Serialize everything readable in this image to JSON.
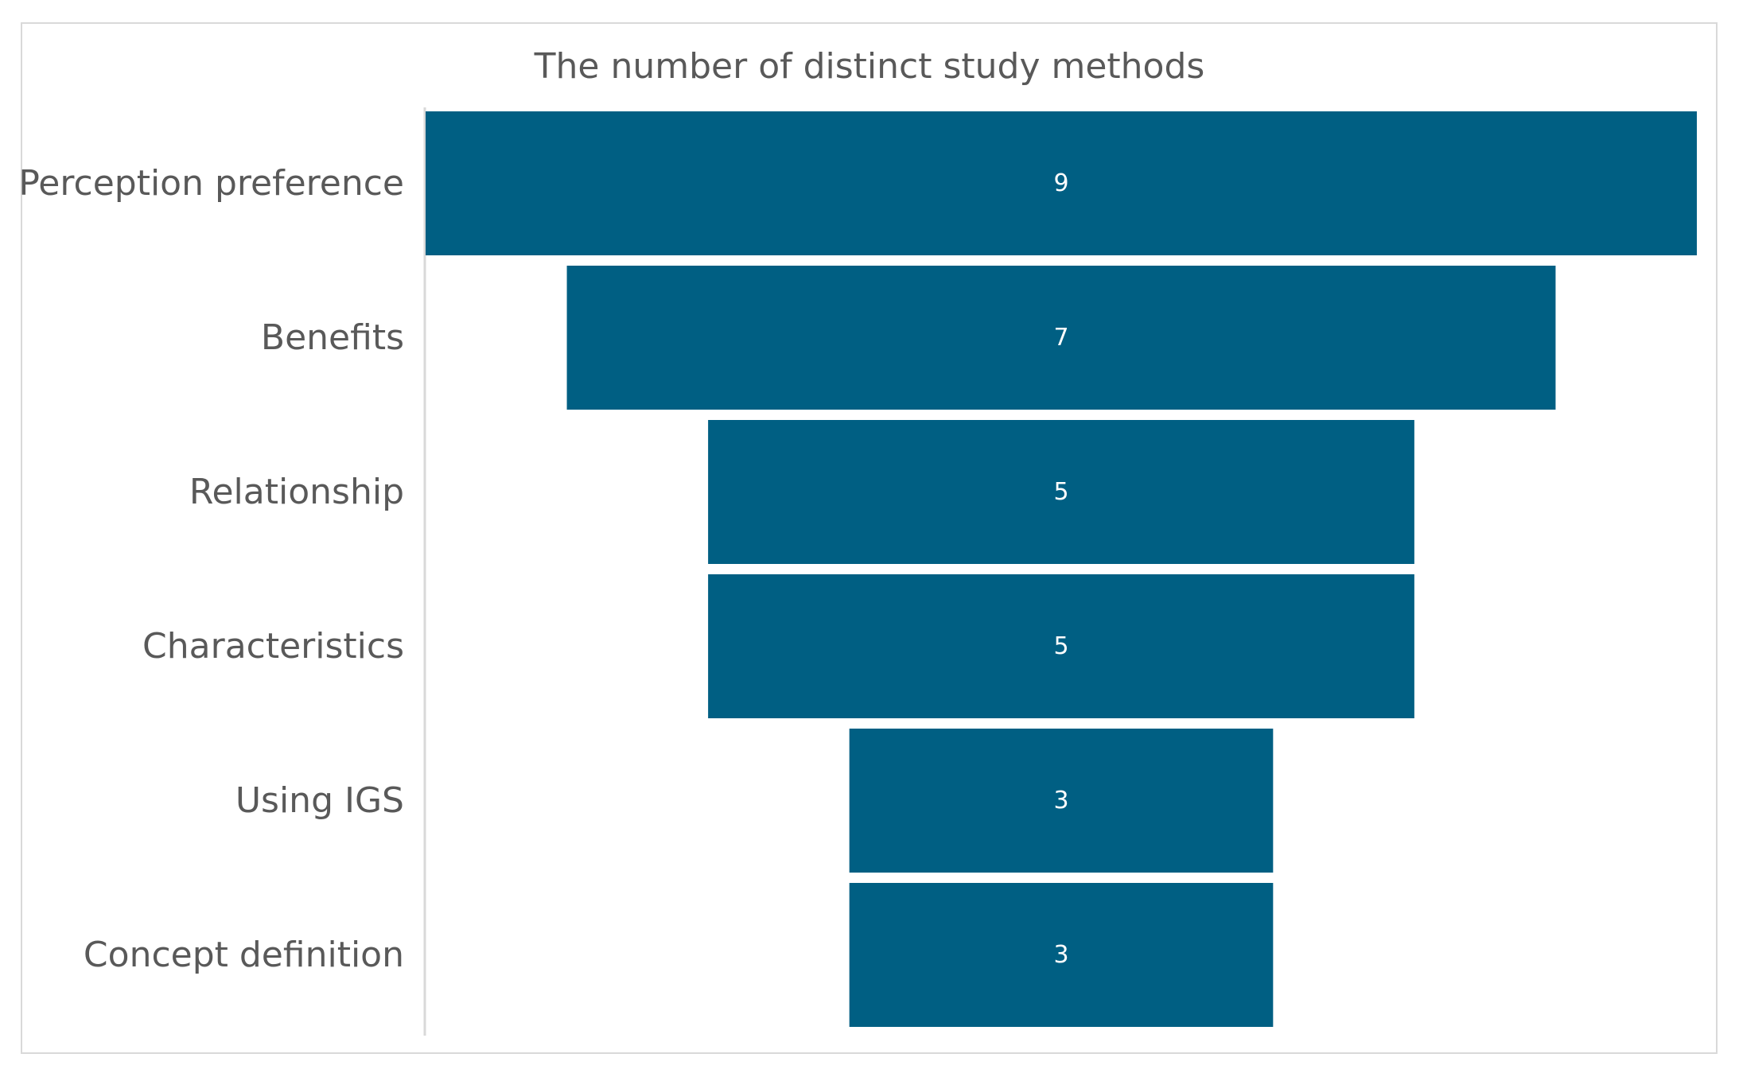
{
  "chart_data": {
    "type": "bar",
    "subtype": "funnel",
    "title": "The number of distinct study methods",
    "categories": [
      "Perception preference",
      "Benefits",
      "Relationship",
      "Characteristics",
      "Using IGS",
      "Concept definition"
    ],
    "values": [
      9,
      7,
      5,
      5,
      3,
      3
    ],
    "data_labels": [
      "9",
      "7",
      "5",
      "5",
      "3",
      "3"
    ],
    "xlim": [
      0,
      9
    ],
    "grid": false,
    "legend": "none",
    "colors": {
      "bar": "#005f83",
      "axis": "#d9d9d9",
      "text": "#595959",
      "label": "#ffffff"
    }
  }
}
